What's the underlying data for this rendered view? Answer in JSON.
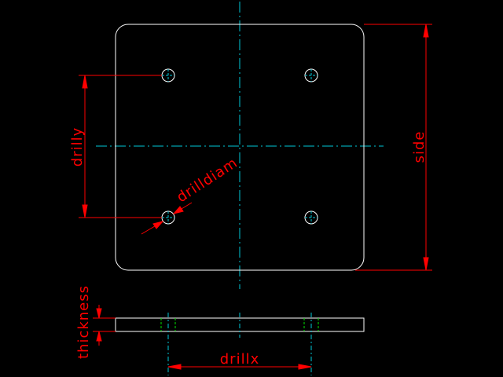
{
  "drawing": {
    "colors": {
      "background": "#000000",
      "outline": "#ffffff",
      "centerline": "#00c8d8",
      "dimension": "#ff0000",
      "hidden": "#00e000"
    },
    "labels": {
      "side": "side",
      "drilly": "drilly",
      "drilldiam": "drilldiam",
      "thickness": "thickness",
      "drillx": "drillx"
    }
  }
}
